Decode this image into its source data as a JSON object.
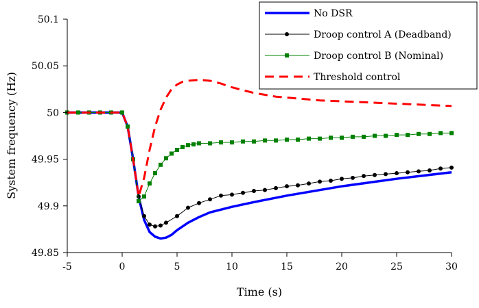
{
  "chart_data": {
    "type": "line",
    "title": "",
    "xlabel": "Time (s)",
    "ylabel": "System frequency (Hz)",
    "xlim": [
      -5,
      30
    ],
    "ylim": [
      49.85,
      50.1
    ],
    "xticks": [
      "-5",
      "0",
      "5",
      "10",
      "15",
      "20",
      "25",
      "30"
    ],
    "yticks": [
      "49.85",
      "49.9",
      "49.95",
      "50",
      "50.05",
      "50.1"
    ],
    "grid": false,
    "legend_position": "top-right",
    "series": [
      {
        "name": "No DSR",
        "color": "#0000ff",
        "style": "solid-thick",
        "marker": "none",
        "points": [
          [
            -5,
            50.0
          ],
          [
            0,
            50.0
          ],
          [
            0.5,
            49.985
          ],
          [
            1,
            49.95
          ],
          [
            1.5,
            49.91
          ],
          [
            2,
            49.885
          ],
          [
            2.5,
            49.872
          ],
          [
            3,
            49.867
          ],
          [
            3.5,
            49.865
          ],
          [
            4,
            49.866
          ],
          [
            4.5,
            49.869
          ],
          [
            5,
            49.874
          ],
          [
            6,
            49.882
          ],
          [
            7,
            49.888
          ],
          [
            8,
            49.893
          ],
          [
            10,
            49.899
          ],
          [
            12,
            49.904
          ],
          [
            15,
            49.911
          ],
          [
            20,
            49.921
          ],
          [
            25,
            49.929
          ],
          [
            30,
            49.936
          ]
        ]
      },
      {
        "name": "Droop control A (Deadband)",
        "color": "#000000",
        "style": "solid-thin",
        "marker": "circle",
        "points": [
          [
            -5,
            50.0
          ],
          [
            -4,
            50.0
          ],
          [
            -3,
            50.0
          ],
          [
            -2,
            50.0
          ],
          [
            -1,
            50.0
          ],
          [
            0,
            50.0
          ],
          [
            0.5,
            49.985
          ],
          [
            1,
            49.95
          ],
          [
            1.5,
            49.91
          ],
          [
            2,
            49.889
          ],
          [
            2.5,
            49.88
          ],
          [
            3,
            49.878
          ],
          [
            3.5,
            49.879
          ],
          [
            4,
            49.882
          ],
          [
            5,
            49.889
          ],
          [
            6,
            49.898
          ],
          [
            7,
            49.903
          ],
          [
            8,
            49.907
          ],
          [
            9,
            49.911
          ],
          [
            10,
            49.912
          ],
          [
            11,
            49.914
          ],
          [
            12,
            49.916
          ],
          [
            13,
            49.917
          ],
          [
            14,
            49.919
          ],
          [
            15,
            49.921
          ],
          [
            16,
            49.922
          ],
          [
            17,
            49.924
          ],
          [
            18,
            49.926
          ],
          [
            19,
            49.927
          ],
          [
            20,
            49.929
          ],
          [
            21,
            49.93
          ],
          [
            22,
            49.932
          ],
          [
            23,
            49.933
          ],
          [
            24,
            49.934
          ],
          [
            25,
            49.935
          ],
          [
            26,
            49.936
          ],
          [
            27,
            49.937
          ],
          [
            28,
            49.938
          ],
          [
            29,
            49.94
          ],
          [
            30,
            49.941
          ]
        ]
      },
      {
        "name": "Droop control B (Nominal)",
        "color": "#008000",
        "style": "solid-thin",
        "marker": "square",
        "points": [
          [
            -5,
            50.0
          ],
          [
            -4,
            50.0
          ],
          [
            -3,
            50.0
          ],
          [
            -2,
            50.0
          ],
          [
            -1,
            50.0
          ],
          [
            0,
            50.0
          ],
          [
            0.5,
            49.985
          ],
          [
            1,
            49.95
          ],
          [
            1.5,
            49.905
          ],
          [
            2,
            49.91
          ],
          [
            2.5,
            49.924
          ],
          [
            3,
            49.935
          ],
          [
            3.5,
            49.944
          ],
          [
            4,
            49.951
          ],
          [
            4.5,
            49.956
          ],
          [
            5,
            49.96
          ],
          [
            5.5,
            49.963
          ],
          [
            6,
            49.965
          ],
          [
            6.5,
            49.966
          ],
          [
            7,
            49.967
          ],
          [
            8,
            49.967
          ],
          [
            9,
            49.968
          ],
          [
            10,
            49.968
          ],
          [
            11,
            49.969
          ],
          [
            12,
            49.969
          ],
          [
            13,
            49.97
          ],
          [
            14,
            49.97
          ],
          [
            15,
            49.971
          ],
          [
            16,
            49.971
          ],
          [
            17,
            49.972
          ],
          [
            18,
            49.972
          ],
          [
            19,
            49.973
          ],
          [
            20,
            49.973
          ],
          [
            21,
            49.974
          ],
          [
            22,
            49.974
          ],
          [
            23,
            49.975
          ],
          [
            24,
            49.975
          ],
          [
            25,
            49.976
          ],
          [
            26,
            49.976
          ],
          [
            27,
            49.977
          ],
          [
            28,
            49.977
          ],
          [
            29,
            49.978
          ],
          [
            30,
            49.978
          ]
        ]
      },
      {
        "name": "Threshold control",
        "color": "#ff0000",
        "style": "dashed-thick",
        "marker": "none",
        "points": [
          [
            -5,
            50.0
          ],
          [
            0,
            50.0
          ],
          [
            0.5,
            49.985
          ],
          [
            1,
            49.95
          ],
          [
            1.5,
            49.91
          ],
          [
            2,
            49.93
          ],
          [
            2.5,
            49.96
          ],
          [
            3,
            49.985
          ],
          [
            3.5,
            50.003
          ],
          [
            4,
            50.016
          ],
          [
            4.5,
            50.025
          ],
          [
            5,
            50.03
          ],
          [
            5.5,
            50.033
          ],
          [
            6,
            50.034
          ],
          [
            7,
            50.035
          ],
          [
            8,
            50.034
          ],
          [
            9,
            50.031
          ],
          [
            10,
            50.027
          ],
          [
            11,
            50.024
          ],
          [
            12,
            50.021
          ],
          [
            14,
            50.017
          ],
          [
            16,
            50.015
          ],
          [
            18,
            50.013
          ],
          [
            20,
            50.012
          ],
          [
            22,
            50.011
          ],
          [
            24,
            50.01
          ],
          [
            26,
            50.009
          ],
          [
            28,
            50.008
          ],
          [
            30,
            50.007
          ]
        ]
      }
    ]
  }
}
